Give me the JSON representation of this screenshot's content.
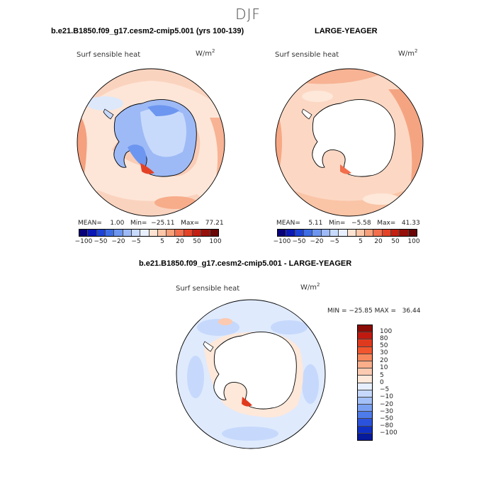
{
  "figure": {
    "season": "DJF"
  },
  "panels": [
    {
      "title": "b.e21.B1850.f09_g17.cesm2-cmip5.001 (yrs 100-139)",
      "field": "Surf sensible heat",
      "units_base": "W/m",
      "units_exp": "2",
      "stats": "MEAN=    1.00   Min=  −25.11   Max=   77.21"
    },
    {
      "title": "LARGE-YEAGER",
      "field": "Surf sensible heat",
      "units_base": "W/m",
      "units_exp": "2",
      "stats": "MEAN=    5.11   Min=   −5.58   Max=   41.33"
    },
    {
      "title": "b.e21.B1850.f09_g17.cesm2-cmip5.001 - LARGE-YEAGER",
      "field": "Surf sensible heat",
      "units_base": "W/m",
      "units_exp": "2",
      "stats": "MIN = −25.85 MAX =   36.44"
    }
  ],
  "colorbar_top": {
    "tick_labels": [
      "−100",
      "−50",
      "−20",
      "−5",
      "5",
      "20",
      "50",
      "100"
    ],
    "colors": [
      "#08007a",
      "#0a18b4",
      "#1c42d6",
      "#3d6ee6",
      "#6d96f0",
      "#9dbaf6",
      "#c8dafc",
      "#e8f0ff",
      "#fde3d0",
      "#fcc7a8",
      "#f7a07a",
      "#f26e4c",
      "#e44226",
      "#c31f12",
      "#96100a",
      "#6a0605"
    ]
  },
  "colorbar_diff": {
    "tick_labels": [
      "100",
      "80",
      "50",
      "30",
      "20",
      "10",
      "5",
      "0",
      "−5",
      "−10",
      "−20",
      "−30",
      "−50",
      "−80",
      "−100"
    ],
    "colors": [
      "#8a0c06",
      "#c01a10",
      "#e03a1e",
      "#f2562e",
      "#f7875c",
      "#faae8a",
      "#fccab0",
      "#fde8da",
      "#e6efff",
      "#c6d9fc",
      "#a3c0f8",
      "#7aa0f2",
      "#4e7bea",
      "#2a52dc",
      "#1030c4",
      "#061a9c"
    ]
  },
  "chart_data": {
    "type": "heatmap",
    "title": "DJF",
    "maps": [
      {
        "name": "b.e21.B1850.f09_g17.cesm2-cmip5.001 (yrs 100-139)",
        "variable": "Surf sensible heat",
        "units": "W/m2",
        "mean": 1.0,
        "min": -25.11,
        "max": 77.21
      },
      {
        "name": "LARGE-YEAGER",
        "variable": "Surf sensible heat",
        "units": "W/m2",
        "mean": 5.11,
        "min": -5.58,
        "max": 41.33
      },
      {
        "name": "b.e21.B1850.f09_g17.cesm2-cmip5.001 - LARGE-YEAGER",
        "variable": "Surf sensible heat",
        "units": "W/m2",
        "min": -25.85,
        "max": 36.44
      }
    ],
    "contour_levels_panels": [
      -100,
      -80,
      -50,
      -30,
      -20,
      -10,
      -5,
      0,
      5,
      10,
      20,
      30,
      50,
      80,
      100
    ],
    "projection": "south polar stereographic"
  }
}
